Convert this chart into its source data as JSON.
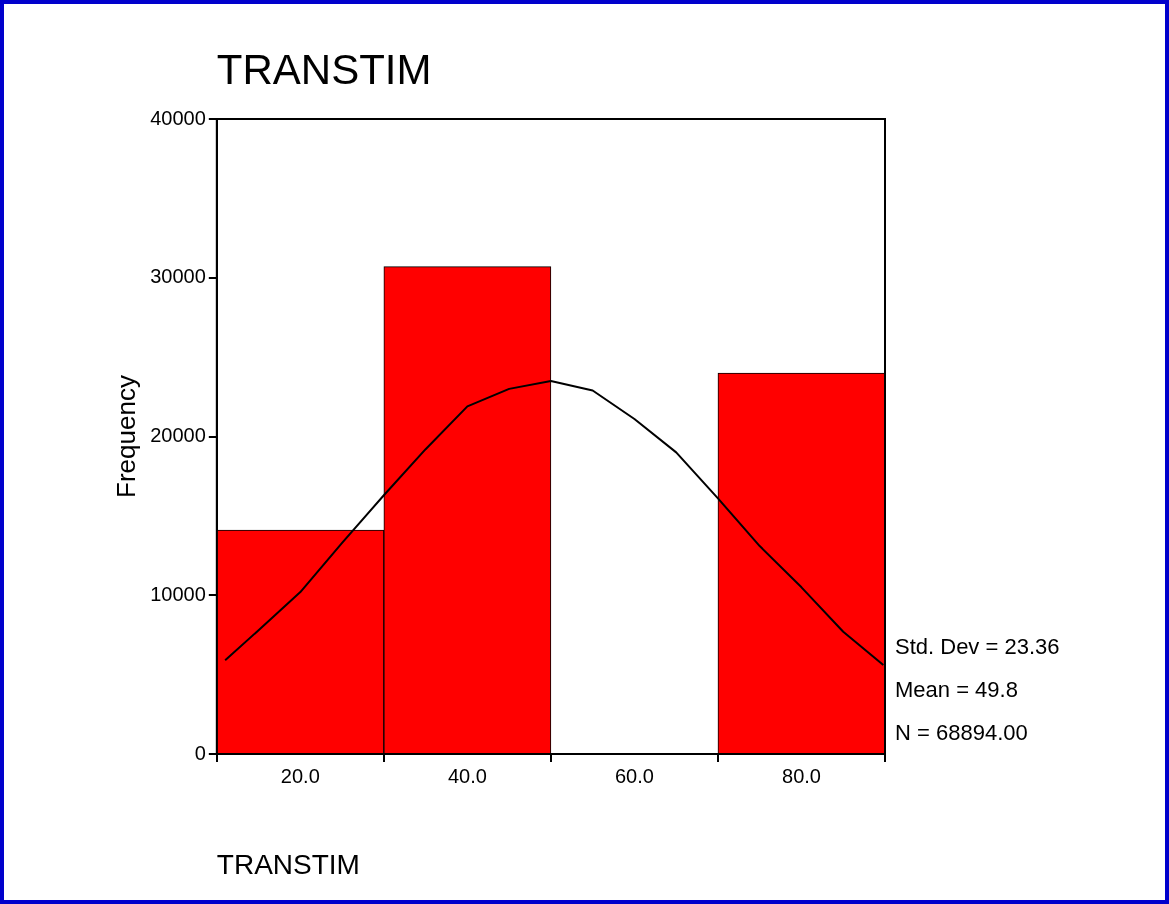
{
  "chart_data": {
    "type": "histogram",
    "title": "TRANSTIM",
    "xlabel": "TRANSTIM",
    "ylabel": "Frequency",
    "bins": [
      10,
      30,
      50,
      70,
      90
    ],
    "values": [
      14100,
      30700,
      0,
      24000
    ],
    "color": "#ff0000",
    "series": [
      {
        "type": "line",
        "color": "#000000",
        "x": [
          11,
          15,
          20,
          25,
          30,
          35,
          40,
          45,
          50,
          55,
          60,
          65,
          70,
          75,
          80,
          85,
          89.8
        ],
        "values": [
          5900,
          7800,
          10200,
          13300,
          16300,
          19200,
          21900,
          23000,
          23500,
          22900,
          21100,
          19000,
          16100,
          13100,
          10500,
          7700,
          5600
        ]
      }
    ],
    "xlim": [
      10,
      90
    ],
    "xticks": [
      {
        "value": 20,
        "label": "20.0"
      },
      {
        "value": 40,
        "label": "40.0"
      },
      {
        "value": 60,
        "label": "60.0"
      },
      {
        "value": 80,
        "label": "80.0"
      }
    ],
    "ylim": [
      0,
      40000
    ],
    "yticks": [
      0,
      10000,
      20000,
      30000,
      40000
    ],
    "grid": false,
    "legend": false,
    "marker": "none",
    "line_style": "solid",
    "annotations": [
      "Std. Dev = 23.36",
      "Mean = 49.8",
      "N = 68894.00"
    ]
  }
}
